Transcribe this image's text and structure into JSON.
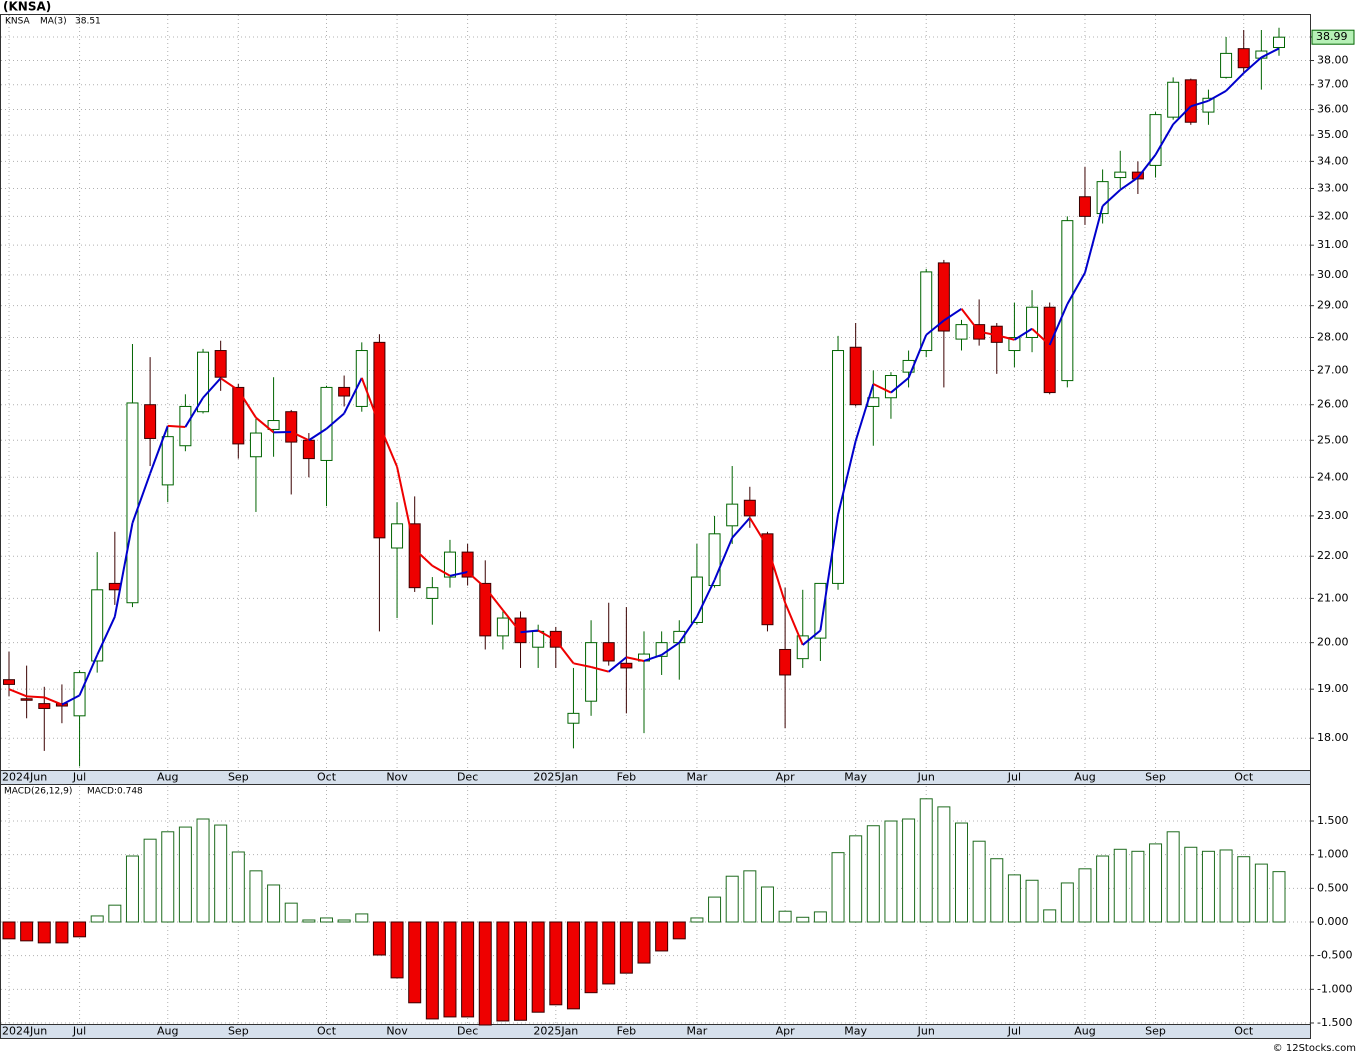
{
  "chart_data": [
    {
      "type": "candlestick",
      "title": "(KNSA)",
      "categories": [
        "2024Jun",
        null,
        null,
        null,
        "Jul",
        null,
        null,
        null,
        null,
        "Aug",
        null,
        null,
        null,
        "Sep",
        null,
        null,
        null,
        null,
        "Oct",
        null,
        null,
        null,
        "Nov",
        null,
        null,
        null,
        "Dec",
        null,
        null,
        null,
        null,
        "2025Jan",
        null,
        null,
        null,
        "Feb",
        null,
        null,
        null,
        "Mar",
        null,
        null,
        null,
        null,
        "Apr",
        null,
        null,
        null,
        "May",
        null,
        null,
        null,
        "Jun",
        null,
        null,
        null,
        null,
        "Jul",
        null,
        null,
        null,
        "Aug",
        null,
        null,
        null,
        "Sep",
        null,
        null,
        null,
        null,
        "Oct",
        null,
        null
      ],
      "series": [
        {
          "name": "KNSA",
          "color": "#006400",
          "down_color": "#ee0000",
          "label_fill": "#b6f0b6",
          "open": [
            19.2,
            18.8,
            18.7,
            18.7,
            18.45,
            19.6,
            21.35,
            20.9,
            26.0,
            23.8,
            24.85,
            25.8,
            27.6,
            26.5,
            24.55,
            25.3,
            25.8,
            25.0,
            24.45,
            26.5,
            25.95,
            27.85,
            22.2,
            22.8,
            21.0,
            21.5,
            22.1,
            21.35,
            20.15,
            20.55,
            19.9,
            20.25,
            18.3,
            18.75,
            20.0,
            19.55,
            19.6,
            19.7,
            20.0,
            20.45,
            21.3,
            22.75,
            23.4,
            22.55,
            19.85,
            19.65,
            20.1,
            21.35,
            27.7,
            25.95,
            26.2,
            26.95,
            27.6,
            30.4,
            27.95,
            28.4,
            28.35,
            27.6,
            28.0,
            28.95,
            26.7,
            32.7,
            32.1,
            33.4,
            33.6,
            33.85,
            35.7,
            37.2,
            35.9,
            37.3,
            38.5,
            38.1,
            38.55
          ],
          "high": [
            19.8,
            19.5,
            19.05,
            19.1,
            19.4,
            22.1,
            22.6,
            27.8,
            27.4,
            25.4,
            26.3,
            27.65,
            27.9,
            26.6,
            25.6,
            26.8,
            25.85,
            25.2,
            26.55,
            26.85,
            27.85,
            28.1,
            23.35,
            23.5,
            21.5,
            22.4,
            22.3,
            21.9,
            20.7,
            20.7,
            20.4,
            20.35,
            19.45,
            20.5,
            20.9,
            20.8,
            20.25,
            20.25,
            20.5,
            22.3,
            23.0,
            24.3,
            23.75,
            22.6,
            21.25,
            21.2,
            21.35,
            28.05,
            28.45,
            27.0,
            26.95,
            27.6,
            30.2,
            30.5,
            28.55,
            29.2,
            28.45,
            29.1,
            29.5,
            29.1,
            32.0,
            33.8,
            33.7,
            34.4,
            34.0,
            35.9,
            37.3,
            37.25,
            36.8,
            39.0,
            39.3,
            39.3,
            39.4
          ],
          "low": [
            18.85,
            18.4,
            17.75,
            18.3,
            17.45,
            19.35,
            20.85,
            20.8,
            24.3,
            23.35,
            24.7,
            25.75,
            26.4,
            24.5,
            23.1,
            24.55,
            23.55,
            24.0,
            23.25,
            25.95,
            25.8,
            20.25,
            20.55,
            21.15,
            20.4,
            21.25,
            21.3,
            19.85,
            19.85,
            19.45,
            19.45,
            19.45,
            17.8,
            18.45,
            19.5,
            18.5,
            18.1,
            19.3,
            19.2,
            20.4,
            21.25,
            22.3,
            22.7,
            20.25,
            18.2,
            19.45,
            19.6,
            21.2,
            25.95,
            24.85,
            25.6,
            26.5,
            27.4,
            26.5,
            27.6,
            27.75,
            26.9,
            27.1,
            27.55,
            26.3,
            26.5,
            31.7,
            31.75,
            33.0,
            32.8,
            33.4,
            35.6,
            35.4,
            35.4,
            37.25,
            37.5,
            36.8,
            38.2
          ],
          "close": [
            19.1,
            18.78,
            18.6,
            18.65,
            19.35,
            21.2,
            21.2,
            26.05,
            25.05,
            25.1,
            25.95,
            27.55,
            26.8,
            24.9,
            25.2,
            25.55,
            24.95,
            24.5,
            26.5,
            26.25,
            27.6,
            22.45,
            22.8,
            21.25,
            21.25,
            22.1,
            21.5,
            20.15,
            20.55,
            20.0,
            20.25,
            19.9,
            18.5,
            20.0,
            19.6,
            19.45,
            19.75,
            20.0,
            20.25,
            21.5,
            22.55,
            23.3,
            23.0,
            20.4,
            19.3,
            20.15,
            21.35,
            27.6,
            26.0,
            26.2,
            26.85,
            27.3,
            30.1,
            28.2,
            28.4,
            27.95,
            27.85,
            28.0,
            28.95,
            26.35,
            31.85,
            32.0,
            33.25,
            33.6,
            33.35,
            35.8,
            37.1,
            35.5,
            36.45,
            38.3,
            37.7,
            38.4,
            38.99
          ]
        },
        {
          "name": "MA(3)",
          "type": "line",
          "color": "#0000cc",
          "down_color": "#ee0000",
          "values": [
            19.0,
            18.85,
            18.83,
            18.68,
            18.87,
            19.73,
            20.58,
            22.82,
            24.1,
            25.4,
            25.37,
            26.2,
            26.77,
            26.42,
            25.63,
            25.22,
            25.23,
            25.0,
            25.32,
            25.75,
            26.78,
            25.43,
            24.28,
            22.17,
            21.77,
            21.53,
            21.62,
            21.25,
            20.73,
            20.23,
            20.27,
            20.05,
            19.55,
            19.47,
            19.37,
            19.68,
            19.6,
            19.73,
            20.0,
            20.58,
            21.43,
            22.45,
            22.95,
            22.23,
            20.9,
            19.95,
            20.27,
            23.03,
            24.98,
            26.6,
            26.35,
            26.78,
            28.08,
            28.53,
            28.9,
            28.18,
            28.07,
            27.93,
            28.27,
            27.77,
            29.05,
            30.07,
            32.37,
            32.95,
            33.4,
            34.25,
            35.42,
            36.13,
            36.35,
            36.75,
            37.48,
            38.13,
            38.51
          ]
        }
      ],
      "ylim": [
        17.38,
        40.0
      ],
      "log_scale": true,
      "grid": true,
      "yticks": [
        {
          "value": 18,
          "label": "18.00"
        },
        {
          "value": 19,
          "label": "19.00"
        },
        {
          "value": 20,
          "label": "20.00"
        },
        {
          "value": 21,
          "label": "21.00"
        },
        {
          "value": 22,
          "label": "22.00"
        },
        {
          "value": 23,
          "label": "23.00"
        },
        {
          "value": 24,
          "label": "24.00"
        },
        {
          "value": 25,
          "label": "25.00"
        },
        {
          "value": 26,
          "label": "26.00"
        },
        {
          "value": 27,
          "label": "27.00"
        },
        {
          "value": 28,
          "label": "28.00"
        },
        {
          "value": 29,
          "label": "29.00"
        },
        {
          "value": 30,
          "label": "30.00"
        },
        {
          "value": 31,
          "label": "31.00"
        },
        {
          "value": 32,
          "label": "32.00"
        },
        {
          "value": 33,
          "label": "33.00"
        },
        {
          "value": 34,
          "label": "34.00"
        },
        {
          "value": 35,
          "label": "35.00"
        },
        {
          "value": 36,
          "label": "36.00"
        },
        {
          "value": 37,
          "label": "37.00"
        },
        {
          "value": 38,
          "label": "38.00"
        },
        {
          "value": 39,
          "label": "39.00"
        }
      ]
    },
    {
      "type": "bar",
      "title": "MACD(26,12,9)",
      "series": [
        {
          "name": "MACD:0.748",
          "color": "#1e6b1e",
          "down_color": "#ee0000",
          "legend_color": "#0000cc",
          "values": [
            -0.25,
            -0.28,
            -0.31,
            -0.31,
            -0.22,
            0.09,
            0.25,
            0.98,
            1.23,
            1.34,
            1.41,
            1.53,
            1.44,
            1.04,
            0.76,
            0.55,
            0.28,
            0.03,
            0.06,
            0.03,
            0.12,
            -0.49,
            -0.83,
            -1.2,
            -1.44,
            -1.41,
            -1.41,
            -1.53,
            -1.47,
            -1.46,
            -1.34,
            -1.23,
            -1.29,
            -1.05,
            -0.92,
            -0.76,
            -0.61,
            -0.43,
            -0.25,
            0.06,
            0.37,
            0.68,
            0.76,
            0.52,
            0.16,
            0.07,
            0.15,
            1.03,
            1.28,
            1.43,
            1.5,
            1.53,
            1.83,
            1.71,
            1.47,
            1.2,
            0.94,
            0.7,
            0.62,
            0.18,
            0.58,
            0.79,
            0.98,
            1.08,
            1.05,
            1.16,
            1.34,
            1.11,
            1.05,
            1.07,
            0.97,
            0.86,
            0.748
          ]
        }
      ],
      "ylim": [
        -1.53,
        2.035
      ],
      "grid": true,
      "yticks": [
        {
          "value": -1.5,
          "label": "-1.500"
        },
        {
          "value": -1,
          "label": "-1.000"
        },
        {
          "value": -0.5,
          "label": "-0.500"
        },
        {
          "value": 0,
          "label": "0.000"
        },
        {
          "value": 0.5,
          "label": "0.500"
        },
        {
          "value": 1,
          "label": "1.000"
        },
        {
          "value": 1.5,
          "label": "1.500"
        }
      ]
    }
  ],
  "credit": "© 12Stocks.com"
}
